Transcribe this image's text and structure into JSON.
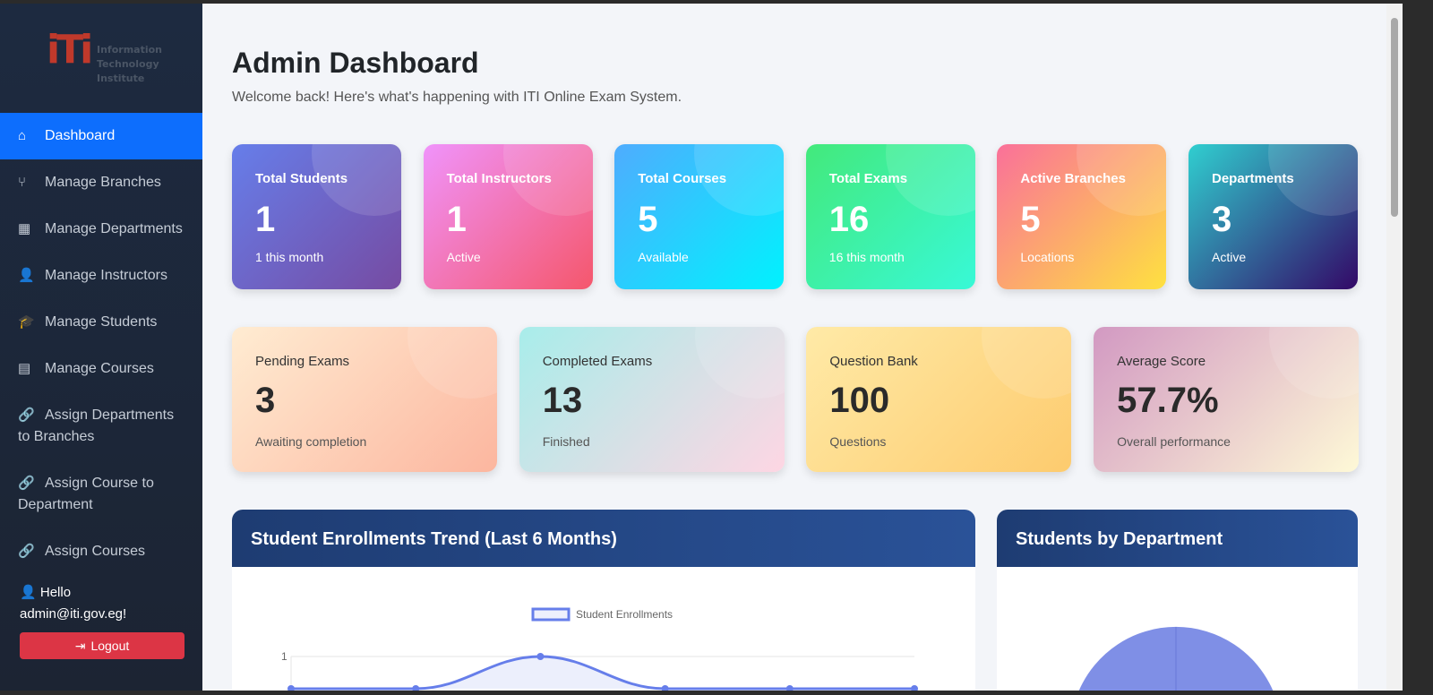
{
  "sidebar": {
    "logo_text": "Information Technology Institute",
    "logo_mark": "iTi",
    "items": [
      {
        "label": "Dashboard",
        "icon": "home-icon"
      },
      {
        "label": "Manage Branches",
        "icon": "branch-icon"
      },
      {
        "label": "Manage Departments",
        "icon": "building-icon"
      },
      {
        "label": "Manage Instructors",
        "icon": "instructor-icon"
      },
      {
        "label": "Manage Students",
        "icon": "graduate-icon"
      },
      {
        "label": "Manage Courses",
        "icon": "book-icon"
      },
      {
        "label": "Assign Departments to Branches",
        "icon": "link-icon"
      },
      {
        "label": "Assign Course to Department",
        "icon": "link-icon"
      },
      {
        "label": "Assign Courses",
        "icon": "link-icon"
      }
    ],
    "greeting": "Hello",
    "user": "admin@iti.gov.eg!",
    "logout": "Logout"
  },
  "header": {
    "title": "Admin Dashboard",
    "subtitle": "Welcome back! Here's what's happening with ITI Online Exam System."
  },
  "stats": [
    {
      "title": "Total Students",
      "value": "1",
      "sub": "1 this month"
    },
    {
      "title": "Total Instructors",
      "value": "1",
      "sub": "Active"
    },
    {
      "title": "Total Courses",
      "value": "5",
      "sub": "Available"
    },
    {
      "title": "Total Exams",
      "value": "16",
      "sub": "16 this month"
    },
    {
      "title": "Active Branches",
      "value": "5",
      "sub": "Locations"
    },
    {
      "title": "Departments",
      "value": "3",
      "sub": "Active"
    }
  ],
  "stats2": [
    {
      "title": "Pending Exams",
      "value": "3",
      "sub": "Awaiting completion"
    },
    {
      "title": "Completed Exams",
      "value": "13",
      "sub": "Finished"
    },
    {
      "title": "Question Bank",
      "value": "100",
      "sub": "Questions"
    },
    {
      "title": "Average Score",
      "value": "57.7%",
      "sub": "Overall performance"
    }
  ],
  "panels": {
    "trend_title": "Student Enrollments Trend (Last 6 Months)",
    "dept_title": "Students by Department"
  },
  "chart_data": [
    {
      "type": "line",
      "series": [
        {
          "name": "Student Enrollments",
          "values": [
            0,
            0,
            1,
            0,
            0,
            0
          ]
        }
      ],
      "yticks": [
        "1"
      ],
      "color": "#667eea",
      "fill": true,
      "legend": "top"
    },
    {
      "type": "pie",
      "color": "#7f8fe6"
    }
  ]
}
